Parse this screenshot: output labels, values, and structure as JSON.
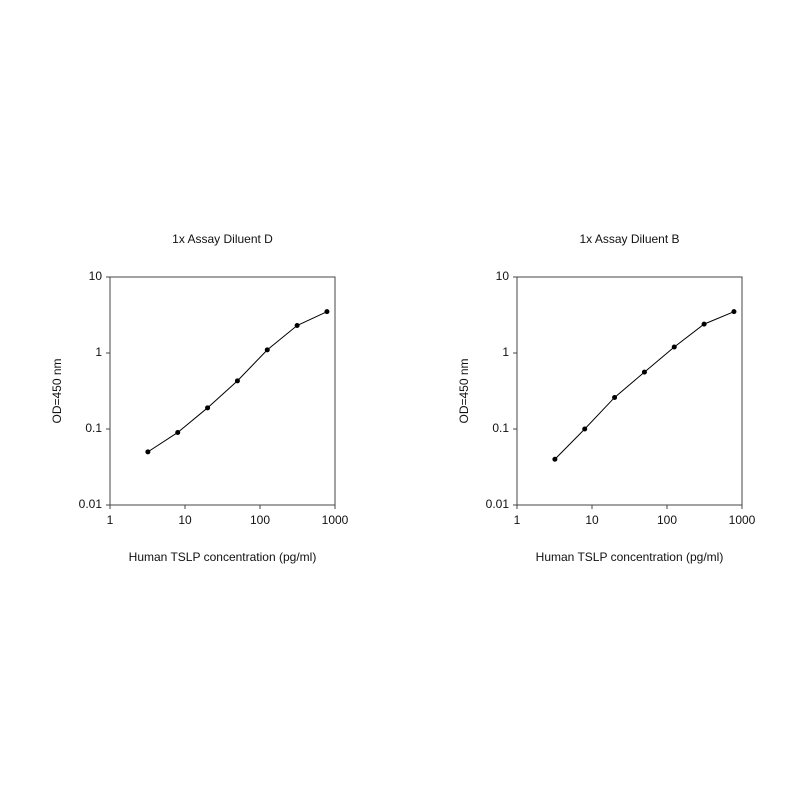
{
  "chart_data": [
    {
      "type": "line",
      "title": "1x Assay Diluent D",
      "x_label": "Human TSLP concentration (pg/ml)",
      "y_label": "OD=450 nm",
      "x": [
        3.2,
        8,
        20,
        50,
        125,
        312.5,
        781
      ],
      "series": [
        {
          "color": "#000000",
          "values": [
            0.05,
            0.09,
            0.19,
            0.43,
            1.1,
            2.3,
            3.5
          ]
        }
      ],
      "xlim": [
        1,
        1000
      ],
      "xticks": [
        1,
        10,
        100,
        1000
      ],
      "ylim": [
        0.01,
        10
      ],
      "yticks": [
        0.01,
        0.1,
        1,
        10
      ],
      "xscale": "log",
      "yscale": "log"
    },
    {
      "type": "line",
      "title": "1x Assay Diluent B",
      "x_label": "Human TSLP concentration (pg/ml)",
      "y_label": "OD=450 nm",
      "x": [
        3.2,
        8,
        20,
        50,
        125,
        312.5,
        781
      ],
      "series": [
        {
          "color": "#000000",
          "values": [
            0.04,
            0.1,
            0.26,
            0.56,
            1.2,
            2.4,
            3.5
          ]
        }
      ],
      "xlim": [
        1,
        1000
      ],
      "xticks": [
        1,
        10,
        100,
        1000
      ],
      "ylim": [
        0.01,
        10
      ],
      "yticks": [
        0.01,
        0.1,
        1,
        10
      ],
      "xscale": "log",
      "yscale": "log"
    }
  ]
}
